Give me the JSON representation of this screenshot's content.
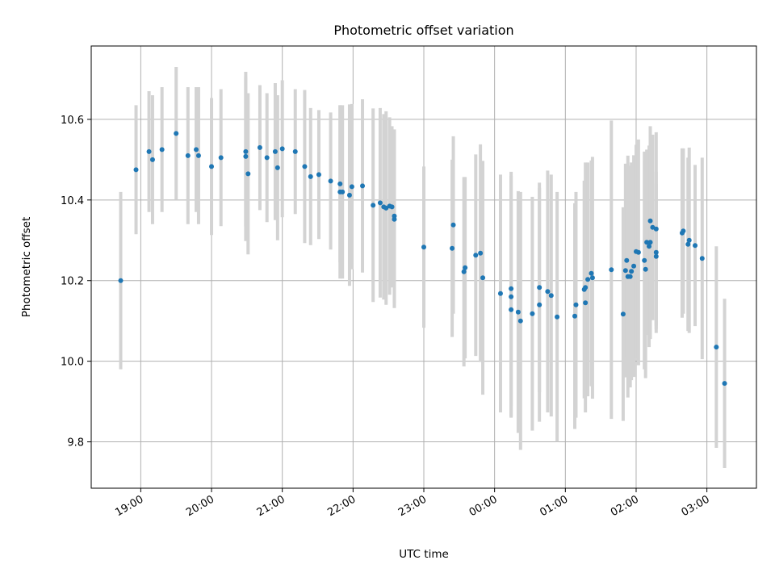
{
  "chart_data": {
    "type": "scatter",
    "title": "Photometric offset variation",
    "xlabel": "UTC time",
    "ylabel": "Photometric offset",
    "x_unit": "UTC time, 18:15 (day 1) to 03:40 (day 2)",
    "xlim": [
      "18:18",
      "03:42"
    ],
    "ylim": [
      9.685,
      10.782
    ],
    "grid": true,
    "xticks": [
      "19:00",
      "20:00",
      "21:00",
      "22:00",
      "23:00",
      "00:00",
      "01:00",
      "02:00",
      "03:00"
    ],
    "yticks": [
      9.8,
      10.0,
      10.2,
      10.4,
      10.6
    ],
    "ytick_labels": [
      "9.8",
      "10.0",
      "10.2",
      "10.4",
      "10.6"
    ],
    "colors": {
      "marker": "#1f77b4",
      "errorbar": "#d3d3d3",
      "grid": "#b0b0b0"
    },
    "series": [
      {
        "x": [
          "18:43",
          "18:56",
          "19:07",
          "19:10",
          "19:18",
          "19:30",
          "19:40",
          "19:47",
          "19:49",
          "20:00",
          "20:08",
          "20:29",
          "20:29",
          "20:31",
          "20:41",
          "20:47",
          "20:54",
          "20:56",
          "21:00",
          "21:11",
          "21:19",
          "21:24",
          "21:31",
          "21:41",
          "21:49",
          "21:49",
          "21:51",
          "21:57",
          "21:59",
          "22:08",
          "22:17",
          "22:23",
          "22:26",
          "22:28",
          "22:31",
          "22:33",
          "22:35",
          "22:35",
          "23:00",
          "23:24",
          "23:25",
          "23:34",
          "23:35",
          "23:44",
          "23:48",
          "23:50",
          "00:05",
          "00:14",
          "00:14",
          "00:14",
          "00:20",
          "00:22",
          "00:32",
          "00:38",
          "00:38",
          "00:45",
          "00:48",
          "00:53",
          "01:08",
          "01:09",
          "01:16",
          "01:17",
          "01:17",
          "01:19",
          "01:22",
          "01:23",
          "01:39",
          "01:49",
          "01:51",
          "01:52",
          "01:53",
          "01:55",
          "01:56",
          "01:58",
          "02:00",
          "02:02",
          "02:07",
          "02:08",
          "02:09",
          "02:11",
          "02:12",
          "02:12",
          "02:14",
          "02:17",
          "02:17",
          "02:17",
          "02:39",
          "02:40",
          "02:44",
          "02:45",
          "02:50",
          "02:56",
          "03:08",
          "03:15"
        ],
        "y": [
          10.2,
          10.475,
          10.52,
          10.5,
          10.525,
          10.565,
          10.51,
          10.525,
          10.51,
          10.483,
          10.505,
          10.52,
          10.508,
          10.465,
          10.53,
          10.505,
          10.52,
          10.48,
          10.527,
          10.52,
          10.483,
          10.458,
          10.463,
          10.447,
          10.44,
          10.42,
          10.42,
          10.412,
          10.433,
          10.435,
          10.387,
          10.393,
          10.383,
          10.38,
          10.385,
          10.383,
          10.36,
          10.352,
          10.283,
          10.28,
          10.338,
          10.222,
          10.232,
          10.263,
          10.268,
          10.207,
          10.168,
          10.18,
          10.16,
          10.128,
          10.122,
          10.1,
          10.118,
          10.14,
          10.183,
          10.173,
          10.163,
          10.11,
          10.112,
          10.14,
          10.178,
          10.183,
          10.145,
          10.203,
          10.218,
          10.207,
          10.227,
          10.117,
          10.225,
          10.25,
          10.21,
          10.21,
          10.223,
          10.236,
          10.272,
          10.27,
          10.25,
          10.228,
          10.295,
          10.285,
          10.295,
          10.348,
          10.332,
          10.328,
          10.26,
          10.27,
          10.318,
          10.323,
          10.29,
          10.3,
          10.287,
          10.255,
          10.035,
          9.945
        ],
        "yerr": [
          0.22,
          0.16,
          0.15,
          0.16,
          0.155,
          0.165,
          0.17,
          0.155,
          0.17,
          0.17,
          0.17,
          0.185,
          0.21,
          0.2,
          0.155,
          0.16,
          0.17,
          0.18,
          0.17,
          0.155,
          0.19,
          0.17,
          0.16,
          0.17,
          0.195,
          0.215,
          0.215,
          0.225,
          0.205,
          0.215,
          0.24,
          0.235,
          0.23,
          0.24,
          0.22,
          0.2,
          0.215,
          0.22,
          0.2,
          0.22,
          0.22,
          0.235,
          0.225,
          0.25,
          0.27,
          0.29,
          0.295,
          0.29,
          0.3,
          0.265,
          0.3,
          0.32,
          0.29,
          0.29,
          0.26,
          0.3,
          0.3,
          0.31,
          0.28,
          0.28,
          0.27,
          0.31,
          0.23,
          0.29,
          0.28,
          0.3,
          0.37,
          0.265,
          0.265,
          0.24,
          0.3,
          0.275,
          0.27,
          0.275,
          0.265,
          0.28,
          0.27,
          0.27,
          0.23,
          0.25,
          0.24,
          0.235,
          0.23,
          0.24,
          0.18,
          0.2,
          0.21,
          0.205,
          0.215,
          0.23,
          0.2,
          0.25,
          0.25,
          0.21
        ]
      }
    ]
  }
}
